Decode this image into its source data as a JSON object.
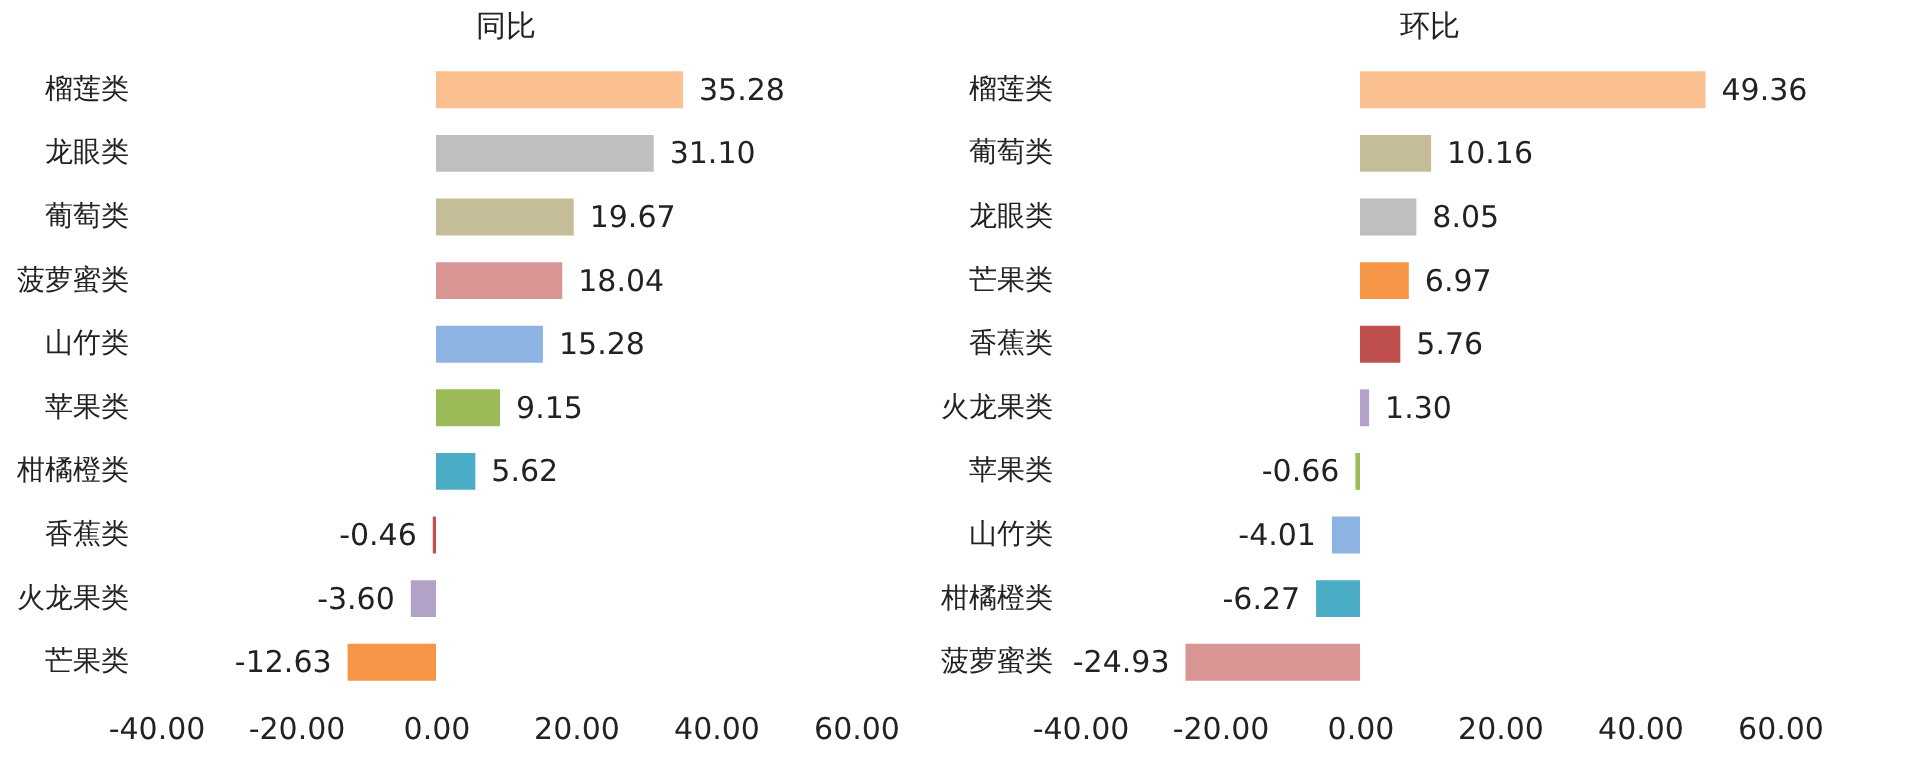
{
  "chart_data": [
    {
      "type": "bar",
      "orientation": "horizontal",
      "title": "同比",
      "grid": false,
      "categories": [
        "榴莲类",
        "龙眼类",
        "葡萄类",
        "菠萝蜜类",
        "山竹类",
        "苹果类",
        "柑橘橙类",
        "香蕉类",
        "火龙果类",
        "芒果类"
      ],
      "values": [
        35.28,
        31.1,
        19.67,
        18.04,
        15.28,
        9.15,
        5.62,
        -0.46,
        -3.6,
        -12.63
      ],
      "value_labels": [
        "35.28",
        "31.10",
        "19.67",
        "18.04",
        "15.28",
        "9.15",
        "5.62",
        "-0.46",
        "-3.60",
        "-12.63"
      ],
      "colors": [
        "#fac090",
        "#bfbfbf",
        "#c4bd97",
        "#d99594",
        "#8db3e2",
        "#9bbb59",
        "#4bacc6",
        "#c0504d",
        "#b2a2c7",
        "#f79646"
      ],
      "xlim": [
        -40,
        60
      ],
      "xticks": [
        {
          "value": -40,
          "label": "-40.00"
        },
        {
          "value": -20,
          "label": "-20.00"
        },
        {
          "value": 0,
          "label": "0.00"
        },
        {
          "value": 20,
          "label": "20.00"
        },
        {
          "value": 40,
          "label": "40.00"
        },
        {
          "value": 60,
          "label": "60.00"
        }
      ]
    },
    {
      "type": "bar",
      "orientation": "horizontal",
      "title": "环比",
      "grid": false,
      "categories": [
        "榴莲类",
        "葡萄类",
        "龙眼类",
        "芒果类",
        "香蕉类",
        "火龙果类",
        "苹果类",
        "山竹类",
        "柑橘橙类",
        "菠萝蜜类"
      ],
      "values": [
        49.36,
        10.16,
        8.05,
        6.97,
        5.76,
        1.3,
        -0.66,
        -4.01,
        -6.27,
        -24.93
      ],
      "value_labels": [
        "49.36",
        "10.16",
        "8.05",
        "6.97",
        "5.76",
        "1.30",
        "-0.66",
        "-4.01",
        "-6.27",
        "-24.93"
      ],
      "colors": [
        "#fac090",
        "#c4bd97",
        "#bfbfbf",
        "#f79646",
        "#c0504d",
        "#b2a2c7",
        "#9bbb59",
        "#8db3e2",
        "#4bacc6",
        "#d99594"
      ],
      "xlim": [
        -40,
        60
      ],
      "xticks": [
        {
          "value": -40,
          "label": "-40.00"
        },
        {
          "value": -20,
          "label": "-20.00"
        },
        {
          "value": 0,
          "label": "0.00"
        },
        {
          "value": 20,
          "label": "20.00"
        },
        {
          "value": 40,
          "label": "40.00"
        },
        {
          "value": 60,
          "label": "60.00"
        }
      ]
    }
  ]
}
